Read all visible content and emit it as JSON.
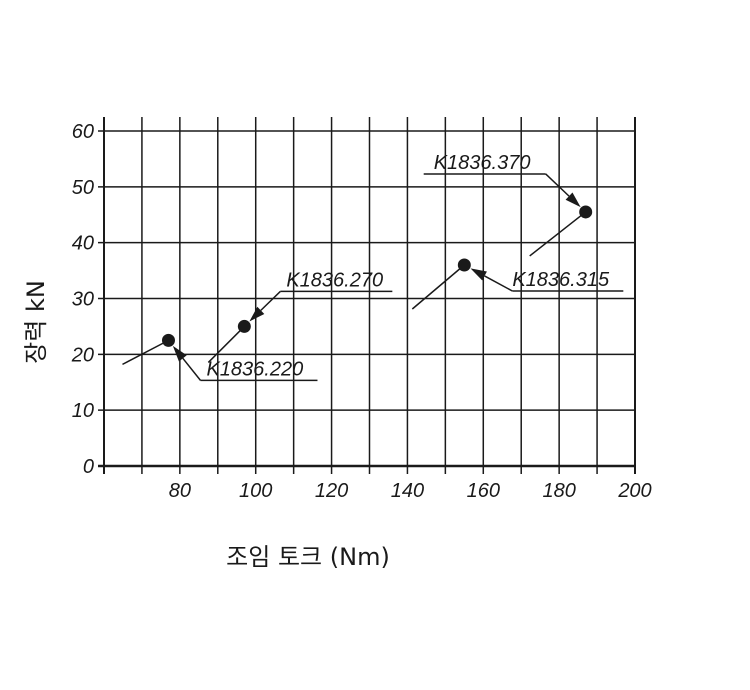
{
  "chart_data": {
    "type": "scatter",
    "title": "",
    "xlabel": "조임 토크 (Nm)",
    "ylabel": "장력 kN",
    "xlim": [
      60,
      200
    ],
    "ylim": [
      0,
      60
    ],
    "xticks": [
      80,
      100,
      120,
      140,
      160,
      180,
      200
    ],
    "yticks": [
      0,
      10,
      20,
      30,
      40,
      50,
      60
    ],
    "grid": true,
    "points": [
      {
        "label": "K1836.220",
        "x": 77,
        "y": 22.5
      },
      {
        "label": "K1836.270",
        "x": 97,
        "y": 25
      },
      {
        "label": "K1836.315",
        "x": 155,
        "y": 36
      },
      {
        "label": "K1836.370",
        "x": 187,
        "y": 45.5
      }
    ],
    "colors": {
      "line": "#1a1a1a",
      "marker": "#1a1a1a",
      "background": "#ffffff"
    }
  }
}
